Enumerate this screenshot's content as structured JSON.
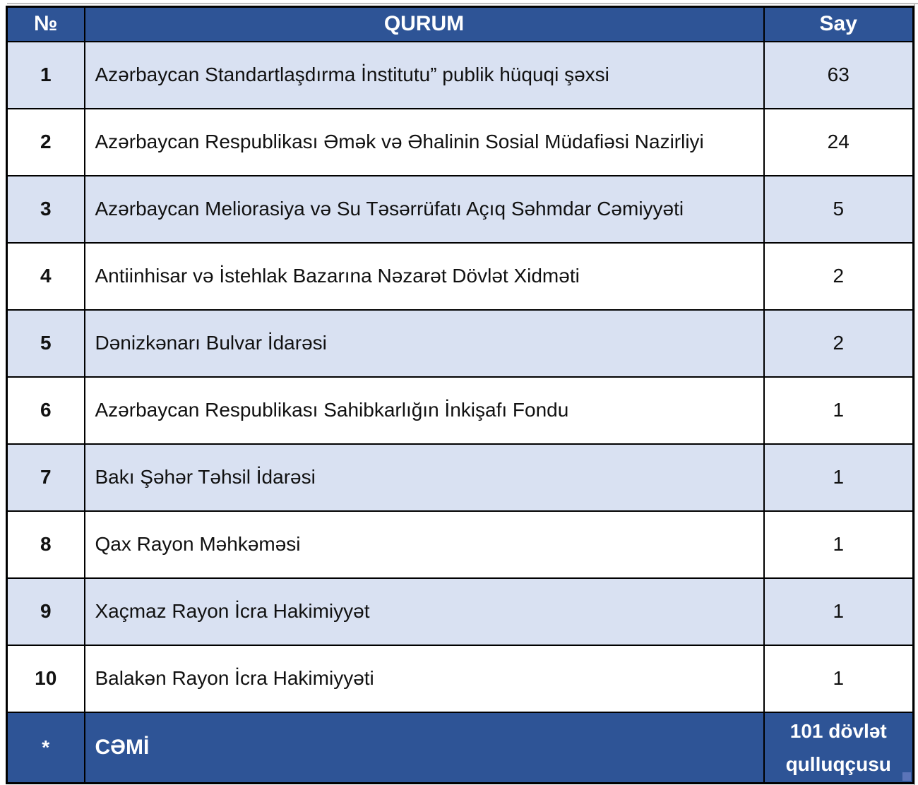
{
  "table": {
    "header": {
      "no": "№",
      "qurum": "QURUM",
      "say": "Say"
    },
    "rows": [
      {
        "no": "1",
        "qurum": "Azərbaycan Standartlaşdırma İnstitutu” publik hüquqi şəxsi",
        "say": "63"
      },
      {
        "no": "2",
        "qurum": "Azərbaycan Respublikası Əmək və Əhalinin Sosial Müdafiəsi Nazirliyi",
        "say": "24"
      },
      {
        "no": "3",
        "qurum": "Azərbaycan Meliorasiya və Su Təsərrüfatı Açıq Səhmdar Cəmiyyəti",
        "say": "5"
      },
      {
        "no": "4",
        "qurum": "Antiinhisar və İstehlak Bazarına Nəzarət Dövlət Xidməti",
        "say": "2"
      },
      {
        "no": "5",
        "qurum": "Dənizkənarı Bulvar İdarəsi",
        "say": "2"
      },
      {
        "no": "6",
        "qurum": "Azərbaycan Respublikası Sahibkarlığın İnkişafı Fondu",
        "say": "1"
      },
      {
        "no": "7",
        "qurum": "Bakı Şəhər Təhsil İdarəsi",
        "say": "1"
      },
      {
        "no": "8",
        "qurum": "Qax Rayon Məhkəməsi",
        "say": "1"
      },
      {
        "no": "9",
        "qurum": "Xaçmaz Rayon İcra Hakimiyyət",
        "say": "1"
      },
      {
        "no": "10",
        "qurum": "Balakən Rayon İcra Hakimiyyəti",
        "say": "1"
      }
    ],
    "footer": {
      "no": "*",
      "qurum": "CƏMİ",
      "say": "101 dövlət qulluqçusu"
    }
  },
  "colors": {
    "header_bg": "#2e5496",
    "footer_bg": "#2e5496",
    "row_alt_bg": "#d9e1f2",
    "row_bg": "#ffffff",
    "border": "#000000",
    "header_text": "#ffffff",
    "body_text": "#111111",
    "page_edge": "#bfbfbf",
    "resize_handle": "#5b74b8"
  }
}
